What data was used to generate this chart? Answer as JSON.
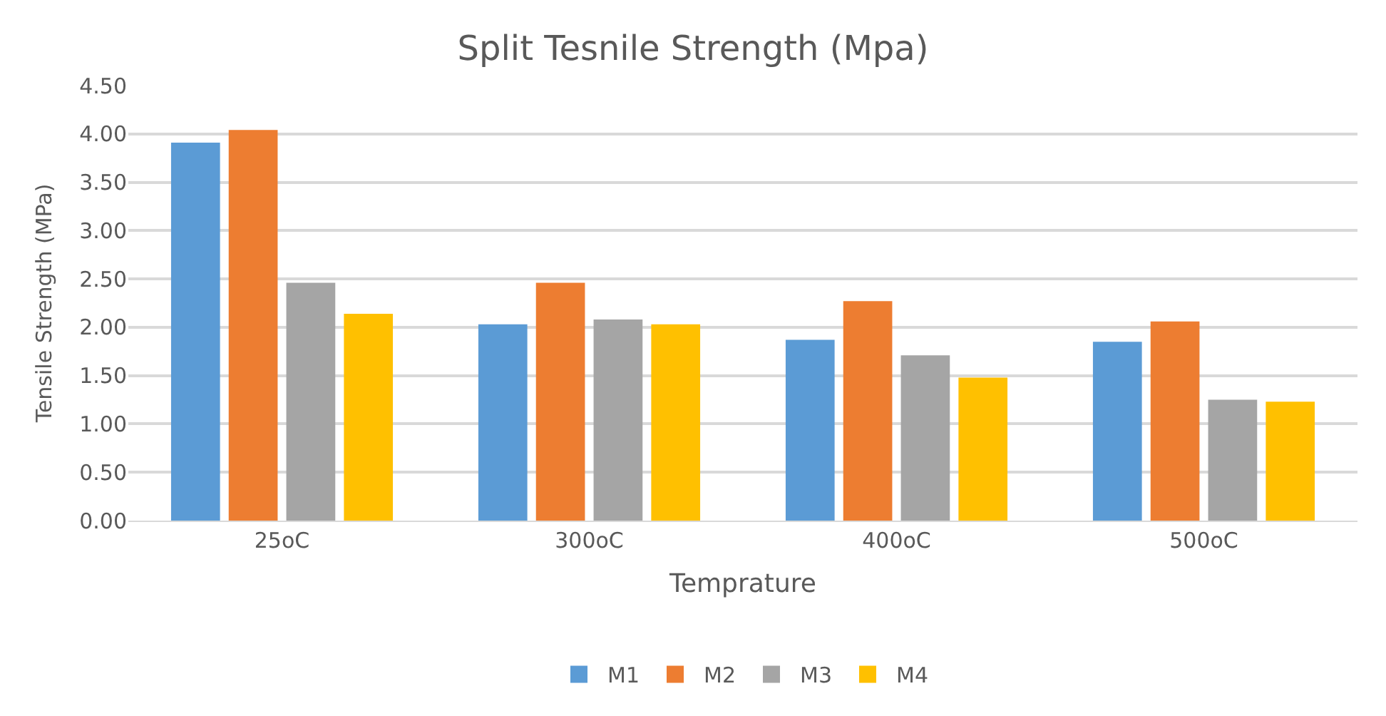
{
  "chart_data": {
    "type": "bar",
    "title": "Split Tesnile Strength (Mpa)",
    "xlabel": "Temprature",
    "ylabel": "Tensile Strength (MPa)",
    "categories": [
      "25oC",
      "300oC",
      "400oC",
      "500oC"
    ],
    "series": [
      {
        "name": "M1",
        "color": "#5b9bd5",
        "values": [
          3.91,
          2.03,
          1.87,
          1.85
        ]
      },
      {
        "name": "M2",
        "color": "#ed7d31",
        "values": [
          4.04,
          2.46,
          2.27,
          2.06
        ]
      },
      {
        "name": "M3",
        "color": "#a5a5a5",
        "values": [
          2.46,
          2.08,
          1.71,
          1.25
        ]
      },
      {
        "name": "M4",
        "color": "#ffc000",
        "values": [
          2.14,
          2.03,
          1.48,
          1.23
        ]
      }
    ],
    "ylim": [
      0,
      4.5
    ],
    "yticks": [
      {
        "value": 0,
        "label": "0.00"
      },
      {
        "value": 0.5,
        "label": "0.50"
      },
      {
        "value": 1,
        "label": "1.00"
      },
      {
        "value": 1.5,
        "label": "1.50"
      },
      {
        "value": 2,
        "label": "2.00"
      },
      {
        "value": 2.5,
        "label": "2.50"
      },
      {
        "value": 3,
        "label": "3.00"
      },
      {
        "value": 3.5,
        "label": "3.50"
      },
      {
        "value": 4,
        "label": "4.00"
      },
      {
        "value": 4.5,
        "label": "4.50"
      }
    ],
    "grid": "y",
    "legend": "bottom"
  }
}
